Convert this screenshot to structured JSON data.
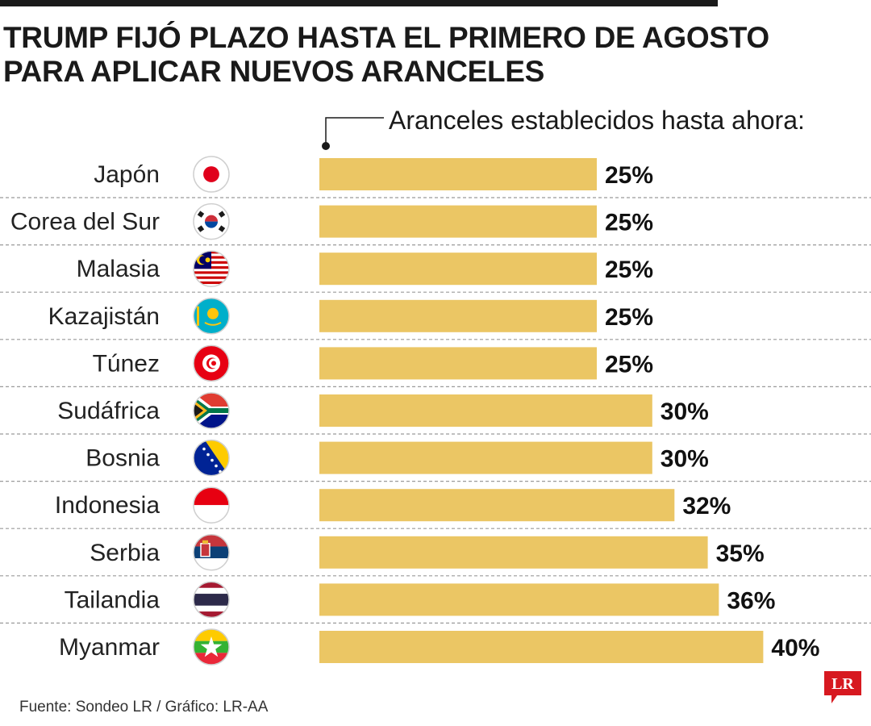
{
  "title": {
    "line1": "TRUMP FIJÓ PLAZO HASTA EL PRIMERO DE AGOSTO",
    "line2": "PARA APLICAR NUEVOS ARANCELES"
  },
  "chart_data": {
    "type": "bar",
    "orientation": "horizontal",
    "annotation": "Aranceles establecidos hasta ahora:",
    "categories": [
      "Japón",
      "Corea del Sur",
      "Malasia",
      "Kazajistán",
      "Túnez",
      "Sudáfrica",
      "Bosnia",
      "Indonesia",
      "Serbia",
      "Tailandia",
      "Myanmar"
    ],
    "values": [
      25,
      25,
      25,
      25,
      25,
      30,
      30,
      32,
      35,
      36,
      40
    ],
    "value_labels": [
      "25%",
      "25%",
      "25%",
      "25%",
      "25%",
      "30%",
      "30%",
      "32%",
      "35%",
      "36%",
      "40%"
    ],
    "flags": [
      "japan-flag-icon",
      "south-korea-flag-icon",
      "malaysia-flag-icon",
      "kazakhstan-flag-icon",
      "tunisia-flag-icon",
      "south-africa-flag-icon",
      "bosnia-flag-icon",
      "indonesia-flag-icon",
      "serbia-flag-icon",
      "thailand-flag-icon",
      "myanmar-flag-icon"
    ],
    "unit": "%",
    "xlim": [
      0,
      40
    ],
    "bar_color": "#ebc664",
    "separator_color": "#9a9a9a"
  },
  "footer": {
    "source": "Fuente: Sondeo LR / Gráfico: LR-AA"
  },
  "logo": {
    "text": "LR",
    "color": "#d71920"
  }
}
